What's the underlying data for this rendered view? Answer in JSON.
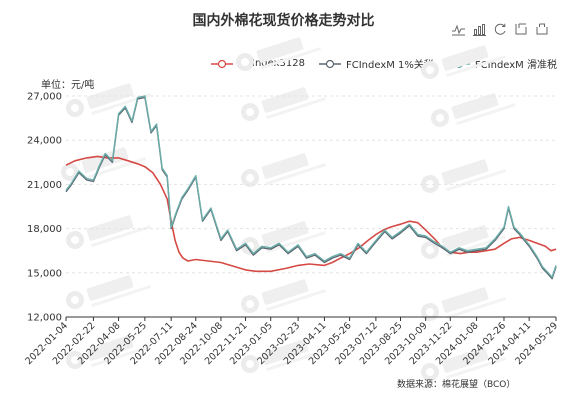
{
  "title": "国内外棉花现货价格走势对比",
  "unit": "单位：元/吨",
  "source": "数据来源：棉花展望（BCO）",
  "toolbox": [
    "line-chart-icon",
    "bar-chart-icon",
    "restore-icon",
    "data-view-icon",
    "save-image-icon"
  ],
  "chart_data": {
    "type": "line",
    "title": "国内外棉花现货价格走势对比",
    "ylabel": "单位：元/吨",
    "ylim": [
      12000,
      27000
    ],
    "yticks": [
      "12,000",
      "15,000",
      "18,000",
      "21,000",
      "24,000",
      "27,000"
    ],
    "xlim": [
      "2022-01-04",
      "2024-05-29"
    ],
    "x_ticks": [
      "2022-01-04",
      "2022-02-22",
      "2022-04-08",
      "2022-05-25",
      "2022-07-11",
      "2022-08-24",
      "2022-10-08",
      "2022-11-21",
      "2023-01-05",
      "2023-02-23",
      "2023-04-11",
      "2023-05-26",
      "2023-07-12",
      "2023-08-25",
      "2023-10-09",
      "2023-11-22",
      "2024-01-08",
      "2024-02-26",
      "2024-04-11",
      "2024-05-29"
    ],
    "grid": "horizontal dashed",
    "legend_position": "top-right",
    "series": [
      {
        "name": "CCIndex3128",
        "color": "#d64a45",
        "x": [
          "2022-01-04",
          "2022-01-20",
          "2022-02-10",
          "2022-03-01",
          "2022-03-20",
          "2022-04-08",
          "2022-04-25",
          "2022-05-12",
          "2022-05-25",
          "2022-06-08",
          "2022-06-22",
          "2022-07-04",
          "2022-07-11",
          "2022-07-18",
          "2022-07-25",
          "2022-08-01",
          "2022-08-10",
          "2022-08-24",
          "2022-09-15",
          "2022-10-08",
          "2022-10-25",
          "2022-11-21",
          "2022-12-10",
          "2023-01-05",
          "2023-02-01",
          "2023-02-23",
          "2023-03-15",
          "2023-04-11",
          "2023-04-25",
          "2023-05-10",
          "2023-05-26",
          "2023-06-12",
          "2023-06-28",
          "2023-07-12",
          "2023-07-25",
          "2023-08-07",
          "2023-08-25",
          "2023-09-10",
          "2023-09-25",
          "2023-10-09",
          "2023-10-25",
          "2023-11-08",
          "2023-11-22",
          "2023-12-10",
          "2023-12-25",
          "2024-01-08",
          "2024-01-25",
          "2024-02-10",
          "2024-02-26",
          "2024-03-10",
          "2024-03-25",
          "2024-04-11",
          "2024-04-25",
          "2024-05-10",
          "2024-05-20",
          "2024-05-29"
        ],
        "values": [
          22300,
          22600,
          22800,
          22900,
          22800,
          22800,
          22600,
          22400,
          22200,
          21800,
          21000,
          20000,
          18500,
          17200,
          16400,
          16000,
          15800,
          15900,
          15800,
          15700,
          15500,
          15200,
          15100,
          15100,
          15300,
          15500,
          15600,
          15500,
          15700,
          16000,
          16300,
          16700,
          17200,
          17600,
          17900,
          18100,
          18300,
          18500,
          18400,
          17900,
          17300,
          16700,
          16400,
          16300,
          16400,
          16400,
          16500,
          16600,
          17000,
          17300,
          17400,
          17200,
          17000,
          16800,
          16500,
          16600
        ]
      },
      {
        "name": "FCIndexM 1%关税",
        "color": "#5b6670",
        "x": [
          "2022-01-04",
          "2022-01-14",
          "2022-01-27",
          "2022-02-10",
          "2022-02-22",
          "2022-03-05",
          "2022-03-15",
          "2022-03-28",
          "2022-04-08",
          "2022-04-20",
          "2022-05-02",
          "2022-05-12",
          "2022-05-25",
          "2022-06-05",
          "2022-06-15",
          "2022-06-25",
          "2022-07-04",
          "2022-07-11",
          "2022-07-20",
          "2022-07-30",
          "2022-08-10",
          "2022-08-24",
          "2022-09-05",
          "2022-09-20",
          "2022-10-08",
          "2022-10-20",
          "2022-11-05",
          "2022-11-21",
          "2022-12-05",
          "2022-12-20",
          "2023-01-05",
          "2023-01-20",
          "2023-02-05",
          "2023-02-23",
          "2023-03-10",
          "2023-03-25",
          "2023-04-11",
          "2023-04-25",
          "2023-05-10",
          "2023-05-26",
          "2023-06-10",
          "2023-06-25",
          "2023-07-12",
          "2023-07-28",
          "2023-08-10",
          "2023-08-25",
          "2023-09-10",
          "2023-09-25",
          "2023-10-09",
          "2023-10-25",
          "2023-11-08",
          "2023-11-22",
          "2023-12-08",
          "2023-12-22",
          "2024-01-08",
          "2024-01-25",
          "2024-02-10",
          "2024-02-26",
          "2024-03-05",
          "2024-03-15",
          "2024-03-25",
          "2024-04-11",
          "2024-04-25",
          "2024-05-05",
          "2024-05-15",
          "2024-05-22",
          "2024-05-29"
        ],
        "values": [
          20500,
          21000,
          21800,
          21300,
          21200,
          22200,
          23000,
          22500,
          25700,
          26200,
          25200,
          26800,
          26900,
          24500,
          25000,
          22000,
          21500,
          18000,
          19000,
          20000,
          20600,
          21500,
          18500,
          19300,
          17200,
          17800,
          16500,
          16900,
          16200,
          16700,
          16600,
          16900,
          16300,
          16800,
          16000,
          16200,
          15700,
          16000,
          16200,
          15900,
          16900,
          16300,
          17100,
          17800,
          17300,
          17700,
          18200,
          17500,
          17400,
          17000,
          16700,
          16300,
          16600,
          16400,
          16500,
          16600,
          17200,
          18000,
          19400,
          18000,
          17600,
          16800,
          16000,
          15300,
          14900,
          14600,
          15400
        ]
      },
      {
        "name": "FCIndexM 滑准税",
        "color": "#6aaeaa",
        "x": [
          "2022-01-04",
          "2022-01-14",
          "2022-01-27",
          "2022-02-10",
          "2022-02-22",
          "2022-03-05",
          "2022-03-15",
          "2022-03-28",
          "2022-04-08",
          "2022-04-20",
          "2022-05-02",
          "2022-05-12",
          "2022-05-25",
          "2022-06-05",
          "2022-06-15",
          "2022-06-25",
          "2022-07-04",
          "2022-07-11",
          "2022-07-20",
          "2022-07-30",
          "2022-08-10",
          "2022-08-24",
          "2022-09-05",
          "2022-09-20",
          "2022-10-08",
          "2022-10-20",
          "2022-11-05",
          "2022-11-21",
          "2022-12-05",
          "2022-12-20",
          "2023-01-05",
          "2023-01-20",
          "2023-02-05",
          "2023-02-23",
          "2023-03-10",
          "2023-03-25",
          "2023-04-11",
          "2023-04-25",
          "2023-05-10",
          "2023-05-26",
          "2023-06-10",
          "2023-06-25",
          "2023-07-12",
          "2023-07-28",
          "2023-08-10",
          "2023-08-25",
          "2023-09-10",
          "2023-09-25",
          "2023-10-09",
          "2023-10-25",
          "2023-11-08",
          "2023-11-22",
          "2023-12-08",
          "2023-12-22",
          "2024-01-08",
          "2024-01-25",
          "2024-02-10",
          "2024-02-26",
          "2024-03-05",
          "2024-03-15",
          "2024-03-25",
          "2024-04-11",
          "2024-04-25",
          "2024-05-05",
          "2024-05-15",
          "2024-05-22",
          "2024-05-29"
        ],
        "values": [
          20600,
          21100,
          21900,
          21400,
          21300,
          22300,
          23100,
          22600,
          25800,
          26300,
          25300,
          26900,
          27000,
          24600,
          25100,
          22100,
          21600,
          18100,
          19100,
          20100,
          20700,
          21600,
          18600,
          19400,
          17300,
          17900,
          16600,
          17000,
          16300,
          16800,
          16700,
          17000,
          16400,
          16900,
          16100,
          16300,
          15800,
          16100,
          16300,
          16000,
          17000,
          16400,
          17200,
          17900,
          17400,
          17800,
          18300,
          17600,
          17500,
          17100,
          16800,
          16400,
          16700,
          16500,
          16600,
          16700,
          17300,
          18100,
          19500,
          18100,
          17700,
          16900,
          16100,
          15400,
          15000,
          14700,
          15500
        ]
      }
    ]
  }
}
